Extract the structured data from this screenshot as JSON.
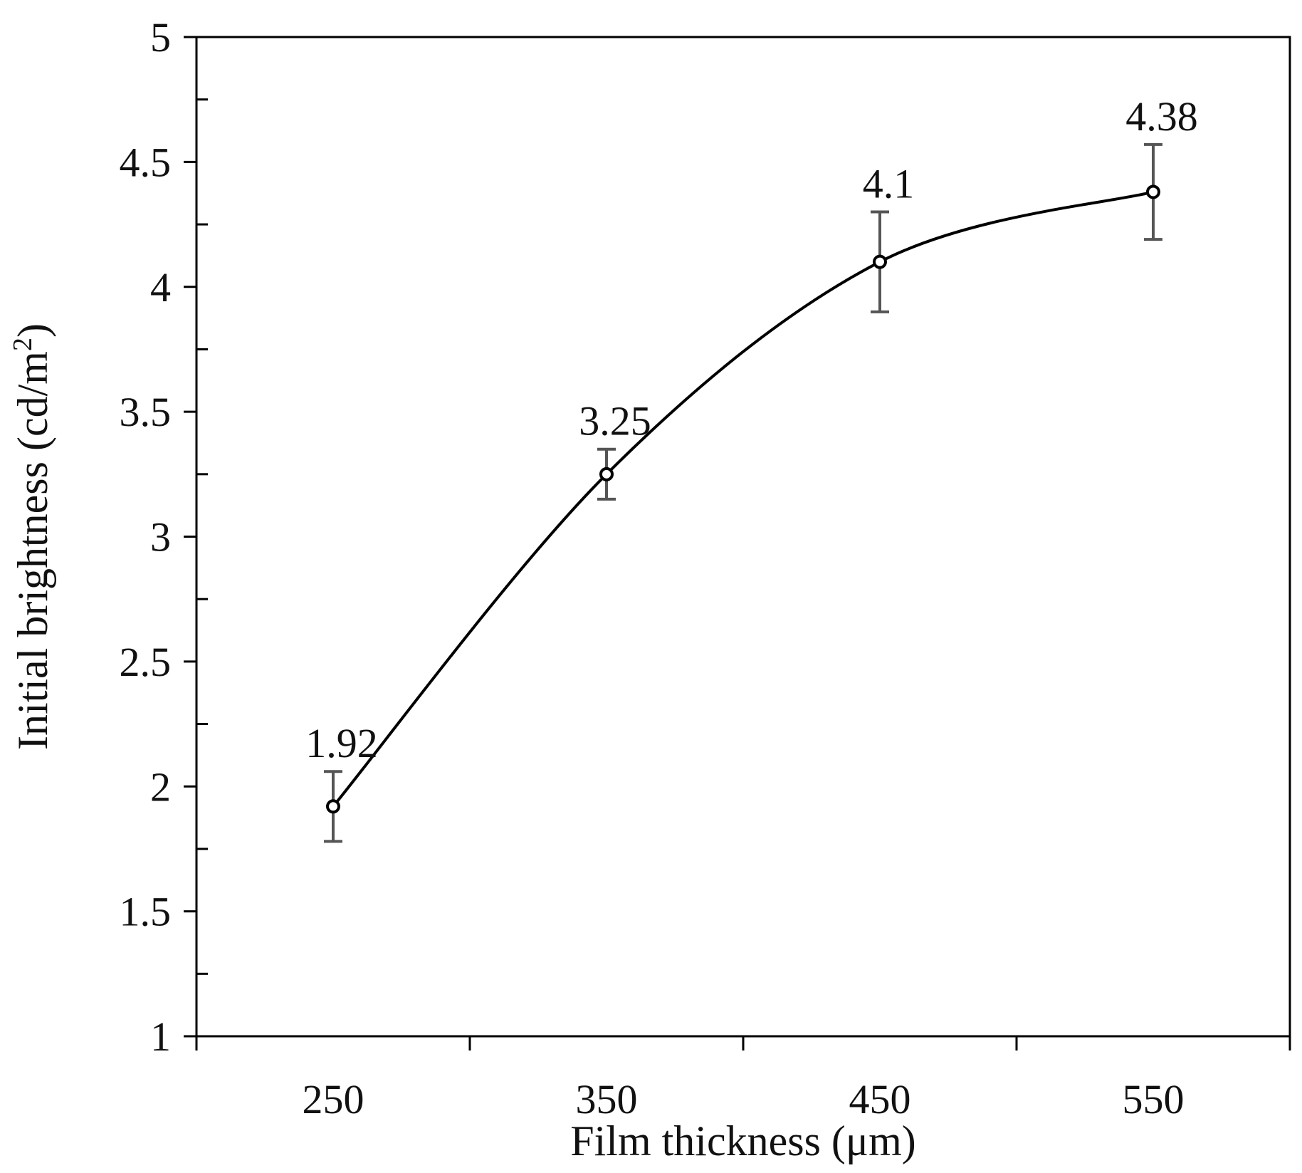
{
  "chart_data": {
    "type": "line",
    "title": "",
    "xlabel": "Film thickness (μm)",
    "ylabel_text": "Initial brightness (cd/m",
    "ylabel_sup": "2",
    "ylabel_close": ")",
    "x": [
      250,
      350,
      450,
      550
    ],
    "y": [
      1.92,
      3.25,
      4.1,
      4.38
    ],
    "y_err": [
      0.14,
      0.1,
      0.2,
      0.19
    ],
    "data_labels": [
      "1.92",
      "3.25",
      "4.1",
      "4.38"
    ],
    "xlim": [
      200,
      600
    ],
    "ylim": [
      1,
      5
    ],
    "x_ticks": [
      "250",
      "350",
      "450",
      "550"
    ],
    "x_tick_values": [
      250,
      350,
      450,
      550
    ],
    "y_ticks": [
      "1",
      "1.5",
      "2",
      "2.5",
      "3",
      "3.5",
      "4",
      "4.5",
      "5"
    ],
    "y_tick_values": [
      1,
      1.5,
      2,
      2.5,
      3,
      3.5,
      4,
      4.5,
      5
    ],
    "smooth": true,
    "grid": false,
    "legend": "none",
    "colors": {
      "line": "#000000",
      "errorbar": "#555555",
      "axis": "#000000"
    }
  }
}
